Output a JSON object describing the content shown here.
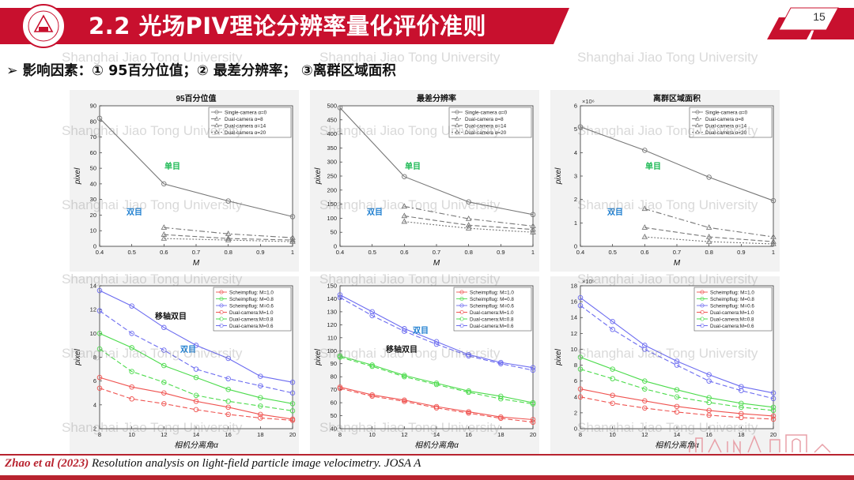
{
  "header": {
    "title": "2.2 光场PIV理论分辨率量化评价准则",
    "page_number": "15",
    "logo_text": "上海交通大学",
    "colors": {
      "bar": "#c8102e",
      "title_text": "#ffffff"
    }
  },
  "bullet": {
    "arrow": "➢",
    "text": "影响因素：① 95百分位值；② 最差分辨率； ③离群区域面积"
  },
  "watermark": "Shanghai Jiao Tong University",
  "citation": {
    "authors": "Zhao et al (2023)",
    "rest": " Resolution analysis on light-field particle image velocimetry. JOSA A"
  },
  "chart_data": [
    {
      "type": "line",
      "title": "95百分位值",
      "xlabel": "M",
      "ylabel": "pixel",
      "xlim": [
        0.4,
        1
      ],
      "ylim": [
        0,
        90
      ],
      "xticks": [
        "0.4",
        "0.5",
        "0.6",
        "0.7",
        "0.8",
        "0.9",
        "1"
      ],
      "yticks": [
        "0",
        "10",
        "20",
        "30",
        "40",
        "50",
        "60",
        "70",
        "80",
        "90"
      ],
      "legend_position": "top-right",
      "annotations": [
        {
          "text": "单目",
          "color": "#1db954"
        },
        {
          "text": "双目",
          "color": "#1f7fd0"
        }
      ],
      "series": [
        {
          "name": "Single-camera α=0",
          "style": "solid",
          "marker": "circle",
          "color": "#777777",
          "x": [
            0.4,
            0.6,
            0.8,
            1
          ],
          "y": [
            82,
            40,
            29,
            19
          ]
        },
        {
          "name": "Dual-camera α=8",
          "style": "dashdot",
          "marker": "triangle",
          "color": "#777777",
          "x": [
            0.6,
            0.8,
            1
          ],
          "y": [
            12,
            8,
            5.5
          ]
        },
        {
          "name": "Dual-camera α=14",
          "style": "dashed",
          "marker": "triangle",
          "color": "#777777",
          "x": [
            0.6,
            0.8,
            1
          ],
          "y": [
            7.5,
            5,
            4
          ]
        },
        {
          "name": "Dual-camera α=20",
          "style": "dotted",
          "marker": "triangle",
          "color": "#777777",
          "x": [
            0.6,
            0.8,
            1
          ],
          "y": [
            5,
            4,
            3
          ]
        }
      ]
    },
    {
      "type": "line",
      "title": "最差分辨率",
      "xlabel": "M",
      "ylabel": "pixel",
      "xlim": [
        0.4,
        1
      ],
      "ylim": [
        0,
        500
      ],
      "xticks": [
        "0.4",
        "0.5",
        "0.6",
        "0.7",
        "0.8",
        "0.9",
        "1"
      ],
      "yticks": [
        "0",
        "50",
        "100",
        "150",
        "200",
        "250",
        "300",
        "350",
        "400",
        "450",
        "500"
      ],
      "legend_position": "top-right",
      "annotations": [
        {
          "text": "单目",
          "color": "#1db954"
        },
        {
          "text": "双目",
          "color": "#1f7fd0"
        }
      ],
      "series": [
        {
          "name": "Single-camera α=0",
          "style": "solid",
          "marker": "circle",
          "color": "#777777",
          "x": [
            0.4,
            0.6,
            0.8,
            1
          ],
          "y": [
            493,
            248,
            158,
            113
          ]
        },
        {
          "name": "Dual-camera α=8",
          "style": "dashdot",
          "marker": "triangle",
          "color": "#777777",
          "x": [
            0.6,
            0.8,
            1
          ],
          "y": [
            142,
            98,
            72
          ]
        },
        {
          "name": "Dual-camera α=14",
          "style": "dashed",
          "marker": "triangle",
          "color": "#777777",
          "x": [
            0.6,
            0.8,
            1
          ],
          "y": [
            108,
            75,
            60
          ]
        },
        {
          "name": "Dual-camera α=20",
          "style": "dotted",
          "marker": "triangle",
          "color": "#777777",
          "x": [
            0.6,
            0.8,
            1
          ],
          "y": [
            88,
            64,
            50
          ]
        }
      ]
    },
    {
      "type": "line",
      "title": "离群区域面积",
      "xlabel": "M",
      "ylabel": "pixel",
      "scale_label": "×10⁶",
      "xlim": [
        0.4,
        1
      ],
      "ylim": [
        0,
        6
      ],
      "xticks": [
        "0.4",
        "0.5",
        "0.6",
        "0.7",
        "0.8",
        "0.9",
        "1"
      ],
      "yticks": [
        "0",
        "1",
        "2",
        "3",
        "4",
        "5",
        "6"
      ],
      "legend_position": "top-right",
      "annotations": [
        {
          "text": "单目",
          "color": "#1db954"
        },
        {
          "text": "双目",
          "color": "#1f7fd0"
        }
      ],
      "series": [
        {
          "name": "Single-camera α=0",
          "style": "solid",
          "marker": "circle",
          "color": "#777777",
          "x": [
            0.4,
            0.6,
            0.8,
            1
          ],
          "y": [
            5.1,
            4.1,
            2.95,
            1.95
          ]
        },
        {
          "name": "Dual-camera α=8",
          "style": "dashdot",
          "marker": "triangle",
          "color": "#777777",
          "x": [
            0.6,
            0.8,
            1
          ],
          "y": [
            1.6,
            0.8,
            0.4
          ]
        },
        {
          "name": "Dual-camera α=14",
          "style": "dashed",
          "marker": "triangle",
          "color": "#777777",
          "x": [
            0.6,
            0.8,
            1
          ],
          "y": [
            0.8,
            0.4,
            0.2
          ]
        },
        {
          "name": "Dual-camera α=20",
          "style": "dotted",
          "marker": "triangle",
          "color": "#777777",
          "x": [
            0.6,
            0.8,
            1
          ],
          "y": [
            0.4,
            0.2,
            0.1
          ]
        }
      ]
    },
    {
      "type": "line",
      "xlabel": "相机分离角α",
      "ylabel": "pixel",
      "xlim": [
        8,
        20
      ],
      "ylim": [
        2,
        14
      ],
      "xticks": [
        "8",
        "10",
        "12",
        "14",
        "16",
        "18",
        "20"
      ],
      "yticks": [
        "2",
        "4",
        "6",
        "8",
        "10",
        "12",
        "14"
      ],
      "legend_position": "top-right",
      "annotations": [
        {
          "text": "移轴双目",
          "color": "#111111"
        },
        {
          "text": "双目",
          "color": "#1f7fd0"
        }
      ],
      "series": [
        {
          "name": "Scheimpflug: M=1.0",
          "style": "solid",
          "marker": "circle",
          "color": "#ef5350",
          "x": [
            8,
            10,
            12,
            14,
            16,
            18,
            20
          ],
          "y": [
            6.3,
            5.5,
            5.0,
            4.3,
            3.8,
            3.2,
            2.8
          ]
        },
        {
          "name": "Scheimpflug: M=0.8",
          "style": "solid",
          "marker": "circle",
          "color": "#4cdb4c",
          "x": [
            8,
            10,
            12,
            14,
            16,
            18,
            20
          ],
          "y": [
            10.0,
            8.8,
            7.3,
            6.3,
            5.3,
            4.6,
            4.1
          ]
        },
        {
          "name": "Scheimpflug: M=0.6",
          "style": "solid",
          "marker": "circle",
          "color": "#6b6bf0",
          "x": [
            8,
            10,
            12,
            14,
            16,
            18,
            20
          ],
          "y": [
            13.6,
            12.3,
            10.5,
            9.0,
            7.9,
            6.4,
            5.9
          ]
        },
        {
          "name": "Dual-camera:M=1.0",
          "style": "dashed",
          "marker": "circle",
          "color": "#ef5350",
          "x": [
            8,
            10,
            12,
            14,
            16,
            18,
            20
          ],
          "y": [
            5.4,
            4.5,
            4.1,
            3.6,
            3.2,
            2.9,
            2.7
          ]
        },
        {
          "name": "Dual-camera:M=0.8",
          "style": "dashed",
          "marker": "circle",
          "color": "#4cdb4c",
          "x": [
            8,
            10,
            12,
            14,
            16,
            18,
            20
          ],
          "y": [
            8.7,
            6.8,
            5.9,
            4.8,
            4.3,
            3.9,
            3.5
          ]
        },
        {
          "name": "Dual-camera:M=0.6",
          "style": "dashed",
          "marker": "circle",
          "color": "#6b6bf0",
          "x": [
            8,
            10,
            12,
            14,
            16,
            18,
            20
          ],
          "y": [
            11.9,
            10.0,
            8.6,
            7.0,
            6.2,
            5.6,
            5.0
          ]
        }
      ]
    },
    {
      "type": "line",
      "xlabel": "相机分离角α",
      "ylabel": "pixel",
      "xlim": [
        8,
        20
      ],
      "ylim": [
        40,
        150
      ],
      "xticks": [
        "8",
        "10",
        "12",
        "14",
        "16",
        "18",
        "20"
      ],
      "yticks": [
        "40",
        "50",
        "60",
        "70",
        "80",
        "90",
        "100",
        "110",
        "120",
        "130",
        "140",
        "150"
      ],
      "legend_position": "top-right",
      "annotations": [
        {
          "text": "双目",
          "color": "#1f7fd0"
        },
        {
          "text": "移轴双目",
          "color": "#111111"
        }
      ],
      "series": [
        {
          "name": "Scheimpflug: M=1.0",
          "style": "solid",
          "marker": "circle",
          "color": "#ef5350",
          "x": [
            8,
            10,
            12,
            14,
            16,
            18,
            20
          ],
          "y": [
            72,
            66,
            62,
            57,
            53,
            49,
            47
          ]
        },
        {
          "name": "Scheimpflug: M=0.8",
          "style": "solid",
          "marker": "circle",
          "color": "#4cdb4c",
          "x": [
            8,
            10,
            12,
            14,
            16,
            18,
            20
          ],
          "y": [
            96,
            89,
            81,
            75,
            69,
            65,
            60
          ]
        },
        {
          "name": "Scheimpflug: M=0.6",
          "style": "solid",
          "marker": "circle",
          "color": "#6b6bf0",
          "x": [
            8,
            10,
            12,
            14,
            16,
            18,
            20
          ],
          "y": [
            143,
            130,
            117,
            107,
            97,
            91,
            87
          ]
        },
        {
          "name": "Dual-camera:M=1.0",
          "style": "dashed",
          "marker": "circle",
          "color": "#ef5350",
          "x": [
            8,
            10,
            12,
            14,
            16,
            18,
            20
          ],
          "y": [
            71,
            65,
            61,
            56,
            52,
            48,
            45
          ]
        },
        {
          "name": "Dual-camera:M=0.8",
          "style": "dashed",
          "marker": "circle",
          "color": "#4cdb4c",
          "x": [
            8,
            10,
            12,
            14,
            16,
            18,
            20
          ],
          "y": [
            95,
            88,
            80,
            74,
            68,
            63,
            59
          ]
        },
        {
          "name": "Dual-camera:M=0.6",
          "style": "dashed",
          "marker": "circle",
          "color": "#6b6bf0",
          "x": [
            8,
            10,
            12,
            14,
            16,
            18,
            20
          ],
          "y": [
            141,
            127,
            115,
            105,
            96,
            90,
            85
          ]
        }
      ]
    },
    {
      "type": "line",
      "xlabel": "相机分离角α",
      "ylabel": "pixel",
      "scale_label": "×10⁵",
      "xlim": [
        8,
        20
      ],
      "ylim": [
        0,
        18
      ],
      "xticks": [
        "8",
        "10",
        "12",
        "14",
        "16",
        "18",
        "20"
      ],
      "yticks": [
        "0",
        "2",
        "4",
        "6",
        "8",
        "10",
        "12",
        "14",
        "16",
        "18"
      ],
      "legend_position": "top-right",
      "series": [
        {
          "name": "Scheimpflug: M=1.0",
          "style": "solid",
          "marker": "circle",
          "color": "#ef5350",
          "x": [
            8,
            10,
            12,
            14,
            16,
            18,
            20
          ],
          "y": [
            5.0,
            4.2,
            3.5,
            2.8,
            2.3,
            1.9,
            1.6
          ]
        },
        {
          "name": "Scheimpflug: M=0.8",
          "style": "solid",
          "marker": "circle",
          "color": "#4cdb4c",
          "x": [
            8,
            10,
            12,
            14,
            16,
            18,
            20
          ],
          "y": [
            9.0,
            7.5,
            6.0,
            4.9,
            3.9,
            3.2,
            2.7
          ]
        },
        {
          "name": "Scheimpflug: M=0.6",
          "style": "solid",
          "marker": "circle",
          "color": "#6b6bf0",
          "x": [
            8,
            10,
            12,
            14,
            16,
            18,
            20
          ],
          "y": [
            16.5,
            13.5,
            10.5,
            8.5,
            6.8,
            5.3,
            4.5
          ]
        },
        {
          "name": "Dual-camera:M=1.0",
          "style": "dashed",
          "marker": "circle",
          "color": "#ef5350",
          "x": [
            8,
            10,
            12,
            14,
            16,
            18,
            20
          ],
          "y": [
            4.0,
            3.2,
            2.6,
            2.1,
            1.7,
            1.4,
            1.2
          ]
        },
        {
          "name": "Dual-camera:M=0.8",
          "style": "dashed",
          "marker": "circle",
          "color": "#4cdb4c",
          "x": [
            8,
            10,
            12,
            14,
            16,
            18,
            20
          ],
          "y": [
            7.5,
            6.3,
            5.0,
            4.0,
            3.3,
            2.7,
            2.3
          ]
        },
        {
          "name": "Dual-camera:M=0.6",
          "style": "dashed",
          "marker": "circle",
          "color": "#6b6bf0",
          "x": [
            8,
            10,
            12,
            14,
            16,
            18,
            20
          ],
          "y": [
            15.5,
            12.5,
            10.0,
            8.0,
            6.0,
            4.8,
            3.8
          ]
        }
      ]
    }
  ]
}
